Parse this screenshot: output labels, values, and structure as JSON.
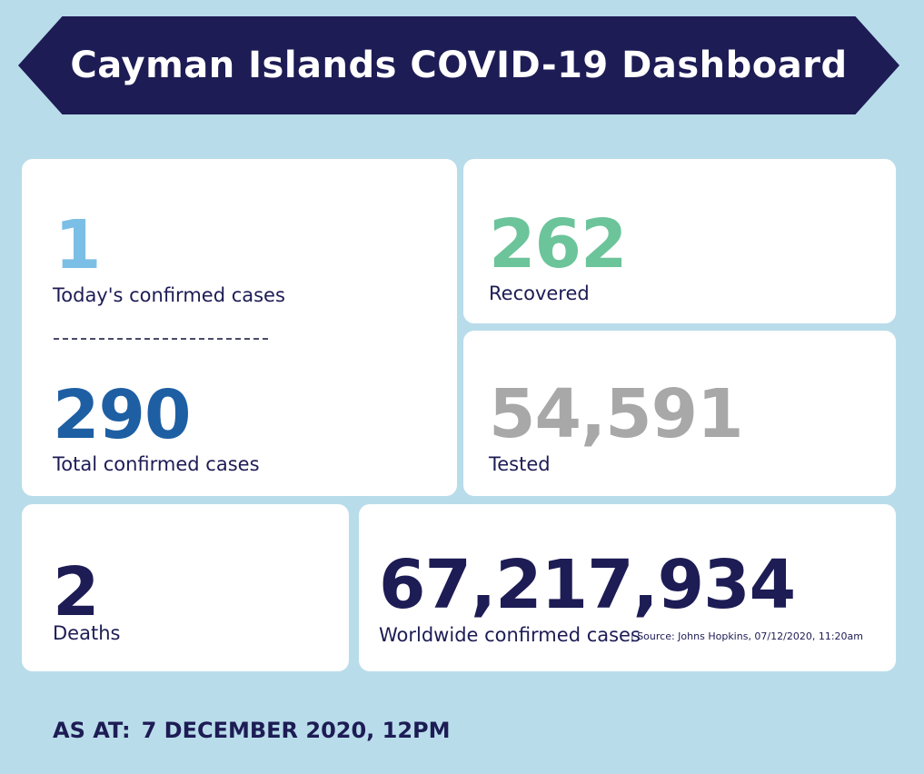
{
  "header": {
    "title": "Cayman Islands COVID-19 Dashboard"
  },
  "stats": {
    "today_confirmed": {
      "value": "1",
      "label": "Today's confirmed cases",
      "color": "#7cbfe6"
    },
    "total_confirmed": {
      "value": "290",
      "label": "Total confirmed cases",
      "color": "#1e5fa3"
    },
    "recovered": {
      "value": "262",
      "label": "Recovered",
      "color": "#6cc49a"
    },
    "tested": {
      "value": "54,591",
      "label": "Tested",
      "color": "#a8a8a8"
    },
    "deaths": {
      "value": "2",
      "label": "Deaths",
      "color": "#1d1c55"
    },
    "worldwide": {
      "value": "67,217,934",
      "label": "Worldwide confirmed cases",
      "source": "| Source: Johns Hopkins, 07/12/2020, 11:20am",
      "color": "#1d1c55"
    }
  },
  "footer": {
    "as_at_label": "AS AT:",
    "as_at_value": "7 DECEMBER 2020, 12PM"
  },
  "colors": {
    "background": "#b9dcea",
    "navy": "#1d1c55",
    "card": "#ffffff"
  }
}
